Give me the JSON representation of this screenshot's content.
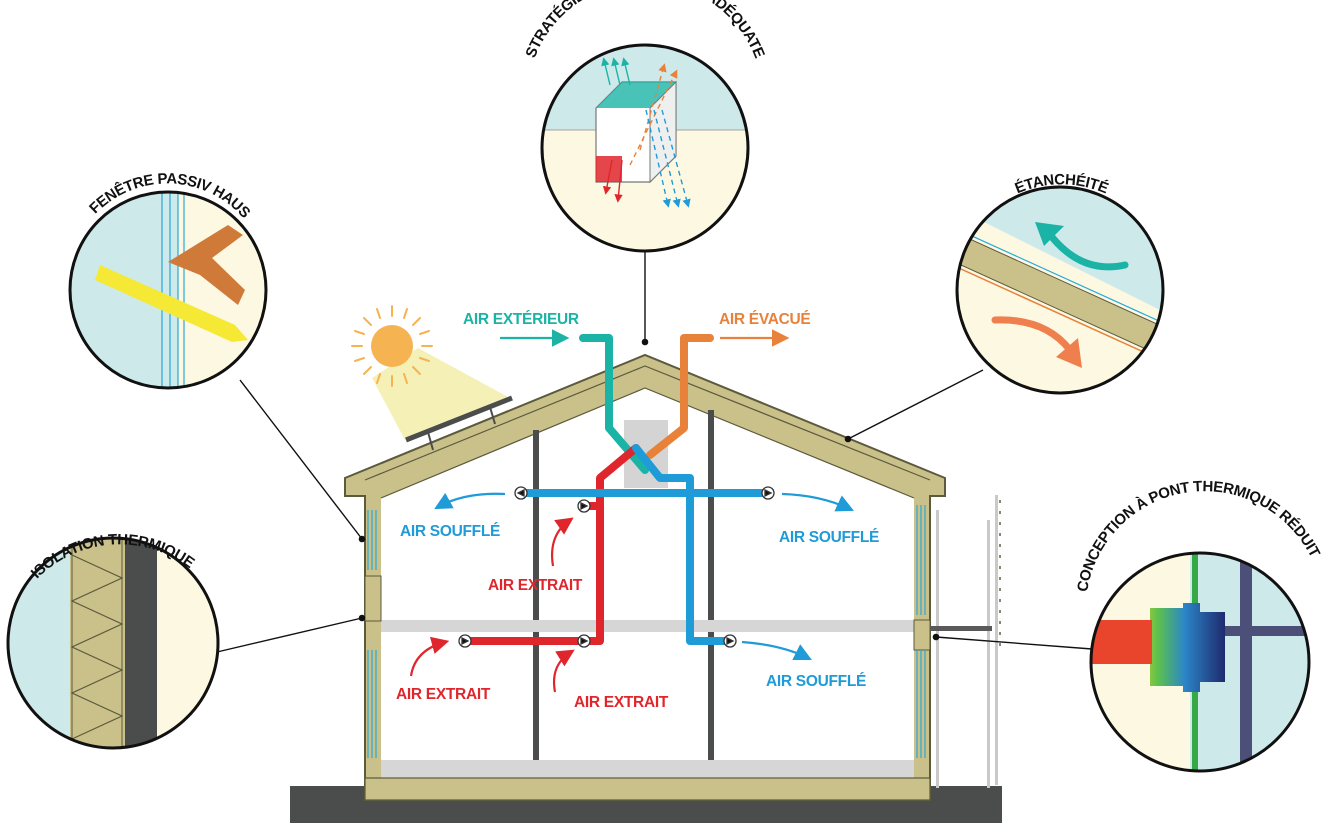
{
  "callouts": {
    "ventilation": "STRATÉGIE DE VENTILATION ADÉQUATE",
    "window": "FENÊTRE PASSIV HAUS",
    "airtightness": "ÉTANCHÉITÉ",
    "insulation": "ISOLATION THERMIQUE",
    "thermal_bridge": "CONCEPTION À PONT THERMIQUE RÉDUIT"
  },
  "labels": {
    "outdoor_air": "AIR EXTÉRIEUR",
    "exhaust_air": "AIR ÉVACUÉ",
    "supply_upper_left": "AIR SOUFFLÉ",
    "supply_upper_right": "AIR SOUFFLÉ",
    "supply_lower_right": "AIR SOUFFLÉ",
    "extract_upper": "AIR EXTRAIT",
    "extract_lower_left": "AIR EXTRAIT",
    "extract_lower_mid": "AIR EXTRAIT"
  },
  "colors": {
    "outdoor_air": "#1bb3a6",
    "exhaust_air": "#e8823a",
    "supply_air": "#1f9bd7",
    "extract_air": "#e0262d",
    "insulation": "#c9c08a",
    "wall_edge": "#5b5a3c",
    "sky": "#cde9ea",
    "interior_warm": "#fdf8e2",
    "ground": "#4a4d4c",
    "sun": "#f6b352"
  }
}
